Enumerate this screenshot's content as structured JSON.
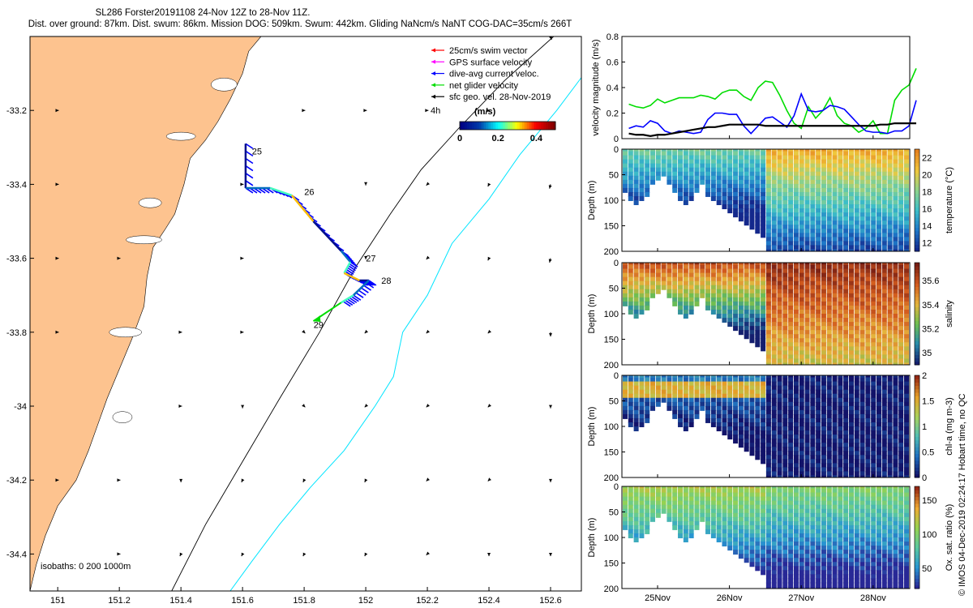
{
  "header": {
    "line1": "SL286 Forster20191108 24-Nov 12Z to 28-Nov 11Z.",
    "line2": "Dist. over ground: 87km. Dist. swum: 86km. Mission DOG: 509km. Swum: 442km. Gliding NaNcm/s NaNT COG-DAC=35cm/s 266T"
  },
  "side_credit": "© IMOS 04-Dec-2019 02:24:17 Hobart time, no QC",
  "colors": {
    "land": "#fdc38f",
    "isobath_200": "#000000",
    "isobath_1000": "#00e5ff",
    "track": "#d9d900",
    "swim_vector": "#ff0000",
    "gps_velocity": "#ff00ff",
    "dive_avg_current": "#0000ff",
    "net_glider_velocity": "#00dd00",
    "sfc_geo_velocity": "#000000"
  },
  "chart_data": [
    {
      "type": "map",
      "legend": [
        {
          "label": "25cm/s swim vector",
          "color": "#ff0000"
        },
        {
          "label": "GPS surface velocity",
          "color": "#ff00ff"
        },
        {
          "label": "dive-avg current veloc.",
          "color": "#0000ff"
        },
        {
          "label": "net glider velocity",
          "color": "#00dd00"
        },
        {
          "label": "sfc geo. vel. 28-Nov-2019",
          "color": "#000000"
        }
      ],
      "arrow_note": "4h",
      "colorbar": {
        "title": "(m/s)",
        "ticks": [
          "0",
          "0.2",
          "0.4"
        ],
        "range": [
          0,
          0.5
        ]
      },
      "isobaths_label": "isobaths: 0   200  1000m",
      "x_ticks": [
        "151",
        "151.2",
        "151.4",
        "151.6",
        "151.8",
        "152",
        "152.2",
        "152.4",
        "152.6"
      ],
      "y_ticks": [
        "-33.2",
        "-33.4",
        "-33.6",
        "-33.8",
        "-34",
        "-34.2",
        "-34.4"
      ],
      "xlim": [
        150.91,
        152.7
      ],
      "ylim": [
        -34.5,
        -33.0
      ],
      "day_labels": [
        {
          "text": "25",
          "lon": 151.62,
          "lat": -33.31
        },
        {
          "text": "26",
          "lon": 151.79,
          "lat": -33.42
        },
        {
          "text": "27",
          "lon": 151.99,
          "lat": -33.6
        },
        {
          "text": "28",
          "lon": 152.04,
          "lat": -33.66
        },
        {
          "text": "29",
          "lon": 151.82,
          "lat": -33.78
        }
      ],
      "track": [
        [
          151.61,
          -33.29
        ],
        [
          151.61,
          -33.41
        ],
        [
          151.69,
          -33.41
        ],
        [
          151.76,
          -33.43
        ],
        [
          151.83,
          -33.5
        ],
        [
          151.92,
          -33.58
        ],
        [
          151.95,
          -33.61
        ],
        [
          151.93,
          -33.64
        ],
        [
          151.98,
          -33.66
        ],
        [
          152.01,
          -33.66
        ],
        [
          151.96,
          -33.7
        ],
        [
          151.92,
          -33.72
        ]
      ],
      "net_velocity_arrow": {
        "from": [
          151.92,
          -33.72
        ],
        "to": [
          151.83,
          -33.77
        ]
      },
      "sfc_geo_grid": [
        [
          151.0,
          -33.2,
          0.1,
          0.0
        ],
        [
          151.0,
          -33.4,
          0.1,
          0.0
        ],
        [
          151.0,
          -33.6,
          0.1,
          0.0
        ],
        [
          151.0,
          -33.8,
          0.1,
          0.0
        ],
        [
          151.0,
          -34.2,
          0.1,
          0.0
        ],
        [
          151.2,
          -33.6,
          0.1,
          0.0
        ],
        [
          151.2,
          -34.2,
          0.1,
          0.0
        ],
        [
          151.2,
          -34.4,
          0.1,
          0.0
        ],
        [
          151.4,
          -33.8,
          0.1,
          0.0
        ],
        [
          151.4,
          -34.0,
          0.1,
          0.0
        ],
        [
          151.4,
          -34.2,
          0.0,
          -0.2
        ],
        [
          151.4,
          -34.4,
          -0.1,
          -0.2
        ],
        [
          151.6,
          -33.4,
          0.1,
          0.0
        ],
        [
          151.6,
          -33.6,
          0.1,
          0.0
        ],
        [
          151.6,
          -33.8,
          0.1,
          0.0
        ],
        [
          151.6,
          -34.0,
          0.0,
          -0.2
        ],
        [
          151.6,
          -34.2,
          -0.1,
          -0.2
        ],
        [
          151.6,
          -34.4,
          -0.1,
          -0.2
        ],
        [
          151.8,
          -33.2,
          0.1,
          0.0
        ],
        [
          151.8,
          -33.8,
          0.1,
          -0.1
        ],
        [
          151.8,
          -34.0,
          0.1,
          -0.1
        ],
        [
          151.8,
          -34.2,
          -0.1,
          -0.2
        ],
        [
          151.8,
          -34.4,
          -0.1,
          -0.2
        ],
        [
          152.0,
          -33.2,
          0.1,
          0.0
        ],
        [
          152.0,
          -33.4,
          0.0,
          -0.1
        ],
        [
          152.0,
          -33.6,
          0.0,
          -0.1
        ],
        [
          152.0,
          -33.8,
          -0.1,
          -0.1
        ],
        [
          152.0,
          -34.0,
          -0.1,
          -0.1
        ],
        [
          152.0,
          -34.2,
          -0.1,
          -0.2
        ],
        [
          152.0,
          -34.4,
          -0.1,
          -0.2
        ],
        [
          152.2,
          -33.2,
          0.1,
          0.0
        ],
        [
          152.2,
          -33.4,
          -0.1,
          -0.1
        ],
        [
          152.2,
          -33.6,
          -0.1,
          -0.1
        ],
        [
          152.2,
          -33.8,
          -0.1,
          -0.1
        ],
        [
          152.2,
          -34.0,
          -0.1,
          -0.1
        ],
        [
          152.2,
          -34.2,
          -0.1,
          -0.1
        ],
        [
          152.2,
          -34.4,
          -0.1,
          -0.1
        ],
        [
          152.4,
          -33.2,
          0.1,
          0.0
        ],
        [
          152.4,
          -33.4,
          -0.1,
          -0.2
        ],
        [
          152.4,
          -33.6,
          -0.1,
          -0.2
        ],
        [
          152.4,
          -33.8,
          -0.1,
          -0.1
        ],
        [
          152.4,
          -34.0,
          -0.1,
          -0.1
        ],
        [
          152.4,
          -34.2,
          -0.1,
          -0.1
        ],
        [
          152.4,
          -34.4,
          0.0,
          -0.2
        ],
        [
          152.6,
          -33.0,
          0.1,
          -0.3
        ],
        [
          152.6,
          -33.4,
          -0.1,
          -0.4
        ],
        [
          152.6,
          -33.6,
          -0.1,
          -0.4
        ],
        [
          152.6,
          -33.8,
          0.0,
          -0.4
        ],
        [
          152.6,
          -34.0,
          0.0,
          -0.2
        ],
        [
          152.6,
          -34.2,
          0.0,
          -0.2
        ],
        [
          152.6,
          -34.4,
          0.0,
          -0.2
        ]
      ]
    },
    {
      "type": "line",
      "ylabel": "velocity magnitude (m/s)",
      "ylim": [
        0,
        0.8
      ],
      "y_ticks": [
        "0",
        "0.2",
        "0.4",
        "0.6",
        "0.8"
      ],
      "x": [
        24.6,
        24.7,
        24.8,
        24.9,
        25.0,
        25.1,
        25.2,
        25.3,
        25.4,
        25.5,
        25.6,
        25.7,
        25.8,
        25.9,
        26.0,
        26.1,
        26.2,
        26.3,
        26.4,
        26.5,
        26.6,
        26.7,
        26.8,
        26.9,
        27.0,
        27.1,
        27.2,
        27.3,
        27.4,
        27.5,
        27.6,
        27.7,
        27.8,
        27.9,
        28.0,
        28.1,
        28.2,
        28.3,
        28.4,
        28.5,
        28.6
      ],
      "series": [
        {
          "color": "#00dd00",
          "values": [
            0.27,
            0.25,
            0.24,
            0.26,
            0.31,
            0.28,
            0.3,
            0.32,
            0.32,
            0.32,
            0.34,
            0.33,
            0.31,
            0.36,
            0.38,
            0.38,
            0.33,
            0.3,
            0.4,
            0.45,
            0.44,
            0.34,
            0.22,
            0.12,
            0.08,
            0.25,
            0.16,
            0.22,
            0.32,
            0.18,
            0.12,
            0.1,
            0.05,
            0.08,
            0.14,
            0.04,
            0.04,
            0.3,
            0.38,
            0.42,
            0.55
          ]
        },
        {
          "color": "#0000ff",
          "values": [
            0.08,
            0.1,
            0.09,
            0.14,
            0.12,
            0.06,
            0.04,
            0.06,
            0.05,
            0.04,
            0.05,
            0.15,
            0.2,
            0.2,
            0.19,
            0.19,
            0.1,
            0.04,
            0.1,
            0.16,
            0.17,
            0.13,
            0.09,
            0.18,
            0.35,
            0.22,
            0.21,
            0.22,
            0.26,
            0.25,
            0.23,
            0.17,
            0.11,
            0.06,
            0.05,
            0.05,
            0.04,
            0.06,
            0.06,
            0.1,
            0.3
          ]
        },
        {
          "color": "#000000",
          "values": [
            0.04,
            0.03,
            0.03,
            0.02,
            0.03,
            0.03,
            0.04,
            0.05,
            0.06,
            0.07,
            0.08,
            0.09,
            0.09,
            0.1,
            0.11,
            0.11,
            0.11,
            0.11,
            0.11,
            0.1,
            0.1,
            0.1,
            0.1,
            0.1,
            0.1,
            0.1,
            0.1,
            0.1,
            0.1,
            0.1,
            0.1,
            0.1,
            0.1,
            0.1,
            0.1,
            0.11,
            0.11,
            0.12,
            0.12,
            0.12,
            0.12
          ]
        }
      ]
    },
    {
      "type": "heatmap",
      "ylabel": "Depth (m)",
      "clabel": "temperature (°C)",
      "ylim": [
        200,
        0
      ],
      "y_ticks": [
        "0",
        "50",
        "100",
        "150",
        "200"
      ],
      "c_ticks": [
        "12",
        "14",
        "16",
        "18",
        "20",
        "22"
      ],
      "crange": [
        11,
        23
      ],
      "colormap": "temperature"
    },
    {
      "type": "heatmap",
      "ylabel": "Depth (m)",
      "clabel": "salinity",
      "ylim": [
        200,
        0
      ],
      "y_ticks": [
        "0",
        "50",
        "100",
        "150",
        "200"
      ],
      "c_ticks": [
        "35",
        "35.2",
        "35.4",
        "35.6"
      ],
      "crange": [
        34.9,
        35.75
      ],
      "colormap": "salinity"
    },
    {
      "type": "heatmap",
      "ylabel": "Depth (m)",
      "clabel": "chl-a (mg m-3)",
      "ylim": [
        200,
        0
      ],
      "y_ticks": [
        "0",
        "50",
        "100",
        "150",
        "200"
      ],
      "c_ticks": [
        "0",
        "0.5",
        "1",
        "1.5",
        "2"
      ],
      "crange": [
        0,
        2
      ],
      "colormap": "chla"
    },
    {
      "type": "heatmap",
      "ylabel": "Depth (m)",
      "clabel": "Ox. sat. ratio (%)",
      "ylim": [
        200,
        0
      ],
      "y_ticks": [
        "0",
        "50",
        "100",
        "150",
        "200"
      ],
      "c_ticks": [
        "50",
        "100",
        "150"
      ],
      "crange": [
        20,
        170
      ],
      "x_ticks": [
        "25Nov",
        "26Nov",
        "27Nov",
        "28Nov"
      ],
      "colormap": "oxygen"
    }
  ]
}
